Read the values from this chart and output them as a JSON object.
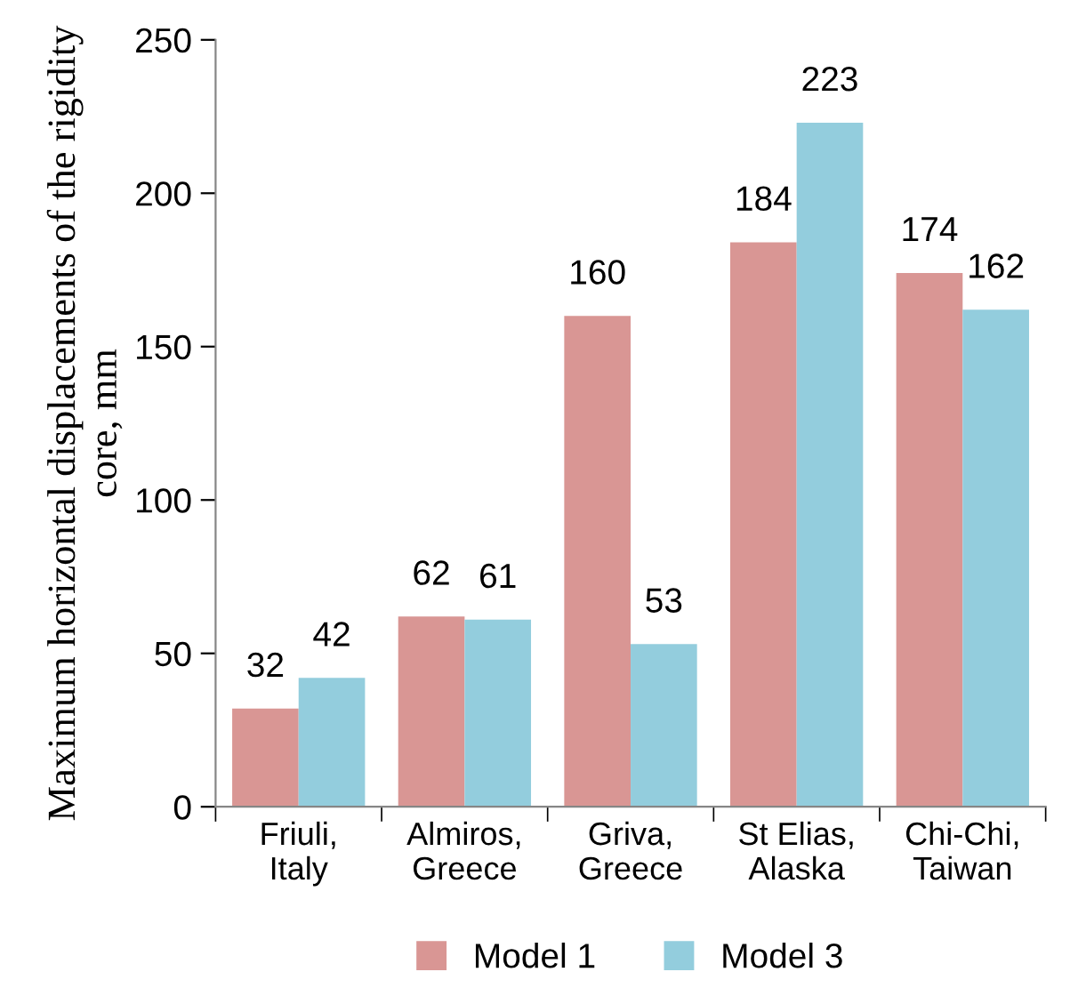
{
  "chart_data": {
    "type": "bar",
    "ylabel": "Maximum horizontal displacements of the rigidity core, mm",
    "categories": [
      "Friuli,\nItaly",
      "Almiros,\nGreece",
      "Griva,\nGreece",
      "St Elias,\nAlaska",
      "Chi-Chi,\nTaiwan"
    ],
    "series": [
      {
        "name": "Model 1",
        "color": "#d99694",
        "values": [
          32,
          62,
          160,
          184,
          174
        ]
      },
      {
        "name": "Model 3",
        "color": "#93cddd",
        "values": [
          42,
          61,
          53,
          223,
          162
        ]
      }
    ],
    "ylim": [
      0,
      250
    ],
    "yticks": [
      0,
      50,
      100,
      150,
      200,
      250
    ],
    "data_labels": true,
    "grid": false,
    "legend": "bottom"
  }
}
